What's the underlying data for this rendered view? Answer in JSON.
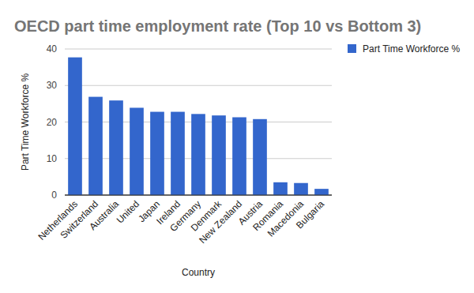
{
  "chart_data": {
    "type": "bar",
    "title": "OECD part time employment rate (Top 10 vs Bottom 3)",
    "x_label": "Country",
    "y_label": "Part Time Workforce %",
    "categories": [
      "Netherlands",
      "Switzerland",
      "Australia",
      "United",
      "Japan",
      "Ireland",
      "Germany",
      "Denmark",
      "New Zealand",
      "Austria",
      "Romania",
      "Macedonia",
      "Bulgaria"
    ],
    "series": [
      {
        "name": "Part Time Workforce %",
        "color": "#3366cc",
        "values": [
          37.7,
          26.9,
          25.9,
          23.9,
          22.8,
          22.8,
          22.2,
          21.8,
          21.3,
          20.8,
          3.5,
          3.3,
          1.7
        ]
      }
    ],
    "ylim": [
      0,
      40
    ],
    "yticks": [
      0,
      10,
      20,
      30,
      40
    ],
    "grid": true,
    "legend": "right"
  }
}
